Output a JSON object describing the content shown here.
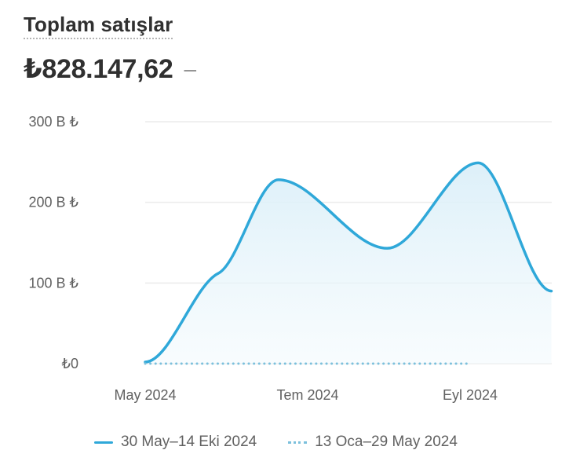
{
  "header": {
    "title": "Toplam satışlar",
    "total": "₺828.147,62",
    "change": "–"
  },
  "colors": {
    "current_series": "#2fa8d9",
    "comparison_series": "#7cc0dc",
    "area_fill": "#e6f4fa",
    "grid": "#ebebeb"
  },
  "chart_data": {
    "type": "area",
    "title": "Toplam satışlar",
    "xlabel": "",
    "ylabel": "",
    "ylim": [
      0,
      300
    ],
    "y_ticks": [
      {
        "value": 300,
        "label": "300 B ₺"
      },
      {
        "value": 200,
        "label": "200 B ₺"
      },
      {
        "value": 100,
        "label": "100 B ₺"
      },
      {
        "value": 0,
        "label": "₺0"
      }
    ],
    "x_ticks": [
      {
        "x": 0,
        "label": "May 2024"
      },
      {
        "x": 1.0,
        "label": "Tem 2024"
      },
      {
        "x": 2.0,
        "label": "Eyl 2024"
      }
    ],
    "x_range": [
      0,
      2.5
    ],
    "grid": true,
    "legend_position": "bottom",
    "series": [
      {
        "name": "30 May–14 Eki 2024",
        "style": "solid",
        "points": [
          [
            0.0,
            2
          ],
          [
            0.45,
            112
          ],
          [
            0.82,
            228
          ],
          [
            1.49,
            143
          ],
          [
            2.05,
            249
          ],
          [
            2.5,
            90
          ]
        ]
      },
      {
        "name": "13 Oca–29 May 2024",
        "style": "dotted",
        "points": [
          [
            0.0,
            0
          ],
          [
            1.99,
            0
          ]
        ]
      }
    ]
  }
}
